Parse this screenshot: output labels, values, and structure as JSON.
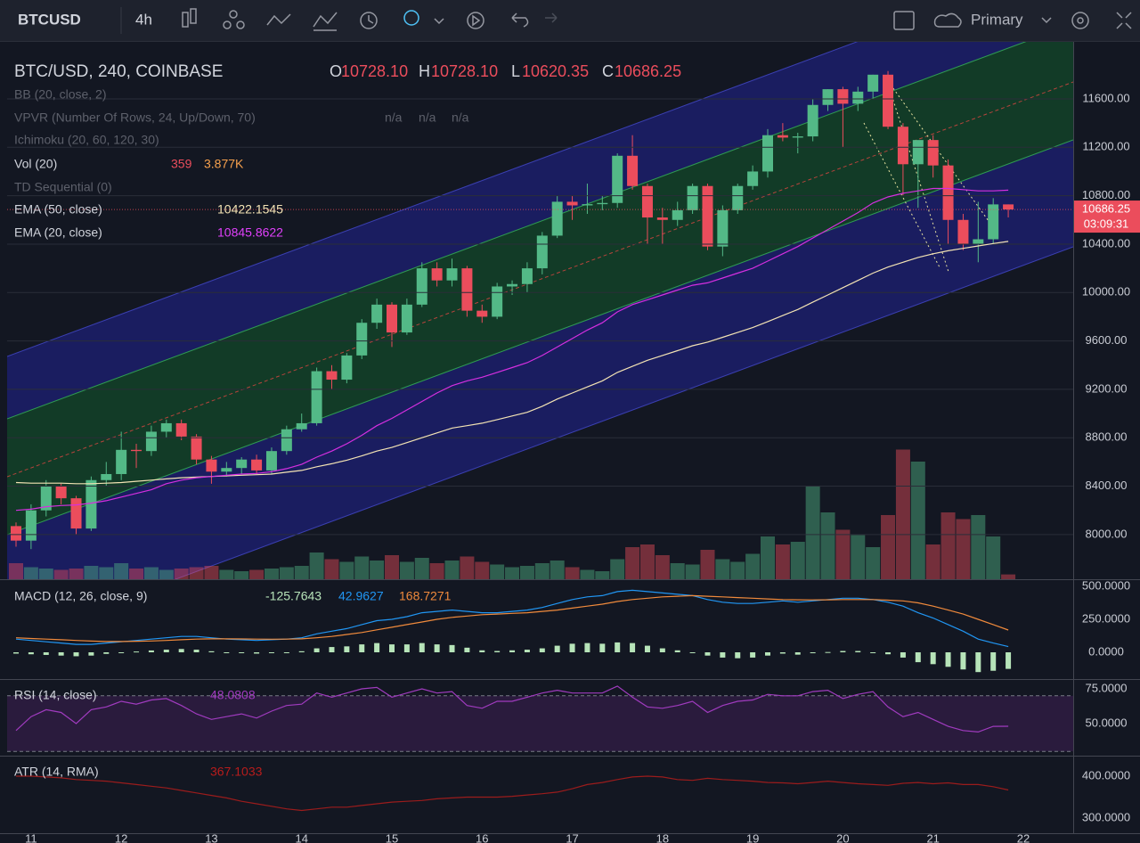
{
  "toolbar": {
    "symbol": "BTCUSD",
    "interval": "4h",
    "layout": "Primary"
  },
  "chart_data": {
    "type": "candlestick",
    "title": "BTC/USD, 240, COINBASE",
    "ohlc_legend": [
      {
        "prefix": "O",
        "label": "10728.10"
      },
      {
        "prefix": "H",
        "label": "10728.10"
      },
      {
        "prefix": "L",
        "label": "10620.35"
      },
      {
        "prefix": "C",
        "label": "10686.25"
      }
    ],
    "hidden_indicators": [
      {
        "name": "BB (20, close, 2)"
      },
      {
        "name": "VPVR (Number Of Rows, 24, Up/Down, 70)",
        "values": [
          "n/a",
          "n/a",
          "n/a"
        ]
      },
      {
        "name": "Ichimoku (20, 60, 120, 30)"
      },
      {
        "name": "TD Sequential (0)"
      }
    ],
    "up_color": "#53b987",
    "down_color": "#eb4d5c",
    "ylim": [
      7631,
      12071
    ],
    "yticks": [
      {
        "value": 8000,
        "label": "8000.00"
      },
      {
        "value": 8400,
        "label": "8400.00"
      },
      {
        "value": 8800,
        "label": "8800.00"
      },
      {
        "value": 9200,
        "label": "9200.00"
      },
      {
        "value": 9600,
        "label": "9600.00"
      },
      {
        "value": 10000,
        "label": "10000.00"
      },
      {
        "value": 10400,
        "label": "10400.00"
      },
      {
        "value": 10800,
        "label": "10800.00"
      },
      {
        "value": 11200,
        "label": "11200.00"
      },
      {
        "value": 11600,
        "label": "11600.00"
      }
    ],
    "grid": true,
    "x_labels": [
      "11",
      "12",
      "13",
      "14",
      "15",
      "16",
      "17",
      "18",
      "19",
      "20",
      "21",
      "22"
    ],
    "countdown": "03:09:31",
    "open": [
      8070,
      7950,
      8200,
      8400,
      8300,
      8050,
      8450,
      8500,
      8700,
      8690,
      8850,
      8920,
      8810,
      8620,
      8520,
      8550,
      8620,
      8530,
      8690,
      8870,
      8920,
      9350,
      9280,
      9480,
      9750,
      9900,
      9670,
      9900,
      10200,
      10100,
      10200,
      9850,
      9800,
      10050,
      10070,
      10200,
      10470,
      10750,
      10720,
      10730,
      10740,
      11130,
      10880,
      10620,
      10600,
      10680,
      10880,
      10380,
      10680,
      10880,
      11000,
      11300,
      11280,
      11290,
      11550,
      11680,
      11560,
      11660,
      11800,
      11370,
      11060,
      11260,
      11050,
      10600,
      10400,
      10440,
      10728.1
    ],
    "high": [
      8100,
      8250,
      8450,
      8420,
      8320,
      8480,
      8600,
      8850,
      8750,
      8900,
      8950,
      8950,
      8830,
      8650,
      8600,
      8640,
      8660,
      8720,
      8900,
      9000,
      9380,
      9400,
      9500,
      9780,
      9950,
      9920,
      9950,
      10250,
      10250,
      10280,
      10220,
      9900,
      10080,
      10100,
      10250,
      10500,
      10800,
      10800,
      10900,
      10800,
      11150,
      11300,
      10900,
      10700,
      10750,
      10900,
      10900,
      10720,
      10900,
      11050,
      11350,
      11400,
      11320,
      11600,
      11680,
      11700,
      11700,
      11800,
      11830,
      11400,
      11250,
      11300,
      11100,
      10650,
      10750,
      10780,
      10728.1
    ],
    "low": [
      7900,
      7880,
      8150,
      8250,
      8000,
      8030,
      8400,
      8450,
      8550,
      8650,
      8800,
      8780,
      8580,
      8420,
      8480,
      8500,
      8500,
      8500,
      8660,
      8850,
      8900,
      9200,
      9250,
      9450,
      9700,
      9550,
      9650,
      9880,
      10050,
      10050,
      9800,
      9750,
      9780,
      9980,
      10000,
      10150,
      10450,
      10600,
      10650,
      10680,
      10700,
      10850,
      10400,
      10400,
      10550,
      10650,
      10350,
      10300,
      10650,
      10850,
      10950,
      11250,
      11150,
      11250,
      11500,
      11200,
      11500,
      11600,
      11350,
      10800,
      10700,
      10950,
      10400,
      10350,
      10250,
      10400,
      10620.35
    ],
    "close": [
      7950,
      8200,
      8400,
      8300,
      8050,
      8450,
      8500,
      8700,
      8690,
      8850,
      8920,
      8810,
      8620,
      8520,
      8550,
      8620,
      8530,
      8690,
      8870,
      8920,
      9350,
      9280,
      9480,
      9750,
      9900,
      9670,
      9900,
      10200,
      10100,
      10200,
      9850,
      9800,
      10050,
      10070,
      10200,
      10470,
      10750,
      10720,
      10730,
      10740,
      11130,
      10880,
      10620,
      10600,
      10680,
      10880,
      10380,
      10680,
      10880,
      11000,
      11300,
      11280,
      11290,
      11550,
      11680,
      11560,
      11660,
      11800,
      11370,
      11060,
      11260,
      11050,
      10600,
      10400,
      10440,
      10728.1,
      10686.25
    ],
    "volume": {
      "name": "Vol (20)",
      "average_label": "3.877K",
      "values": [
        1200,
        900,
        800,
        700,
        800,
        1000,
        900,
        1200,
        800,
        900,
        700,
        800,
        900,
        1000,
        700,
        600,
        700,
        800,
        900,
        1000,
        2000,
        1500,
        1300,
        1700,
        1400,
        1800,
        1300,
        1600,
        1200,
        1400,
        1700,
        1300,
        1100,
        900,
        1000,
        1200,
        1400,
        900,
        700,
        600,
        1500,
        2400,
        2600,
        1800,
        1200,
        1100,
        2200,
        1500,
        1300,
        1900,
        3200,
        2600,
        2800,
        7000,
        5000,
        3700,
        3300,
        2400,
        4800,
        9700,
        8800,
        2600,
        5000,
        4500,
        4800,
        3200,
        359
      ]
    },
    "ema50": {
      "name": "EMA (50, close)",
      "color": "#f3e3b4",
      "values": [
        8430,
        8425,
        8425,
        8425,
        8420,
        8420,
        8425,
        8430,
        8440,
        8450,
        8460,
        8470,
        8475,
        8480,
        8485,
        8490,
        8495,
        8500,
        8515,
        8530,
        8560,
        8585,
        8615,
        8650,
        8690,
        8720,
        8760,
        8800,
        8840,
        8880,
        8900,
        8920,
        8950,
        8980,
        9010,
        9060,
        9120,
        9170,
        9220,
        9270,
        9340,
        9390,
        9440,
        9480,
        9520,
        9560,
        9590,
        9630,
        9670,
        9710,
        9760,
        9810,
        9860,
        9920,
        9980,
        10040,
        10100,
        10160,
        10210,
        10250,
        10290,
        10320,
        10345,
        10365,
        10385,
        10405,
        10422.1545
      ]
    },
    "ema20": {
      "name": "EMA (20, close)",
      "color": "#d52fe0",
      "values": [
        8200,
        8210,
        8230,
        8240,
        8245,
        8260,
        8280,
        8310,
        8340,
        8370,
        8420,
        8450,
        8470,
        8480,
        8490,
        8500,
        8505,
        8520,
        8545,
        8580,
        8640,
        8690,
        8750,
        8820,
        8900,
        8960,
        9030,
        9100,
        9170,
        9230,
        9270,
        9300,
        9340,
        9380,
        9420,
        9480,
        9550,
        9620,
        9690,
        9750,
        9840,
        9900,
        9940,
        9980,
        10020,
        10060,
        10080,
        10120,
        10160,
        10200,
        10260,
        10320,
        10380,
        10450,
        10520,
        10590,
        10660,
        10740,
        10790,
        10820,
        10840,
        10860,
        10860,
        10850,
        10840,
        10840,
        10845.8622
      ]
    },
    "macd": {
      "name": "MACD (12, 26, close, 9)",
      "ylim": [
        -202.7,
        540.5
      ],
      "yticks": [
        {
          "value": 500,
          "label": "500.0000"
        },
        {
          "value": 250,
          "label": "250.0000"
        },
        {
          "value": 0,
          "label": "0.0000"
        }
      ],
      "histogram": {
        "color": "#b7e4b9",
        "values": [
          -10,
          -15,
          -20,
          -25,
          -30,
          -25,
          -12,
          -2,
          6,
          14,
          20,
          25,
          20,
          8,
          -2,
          -6,
          -10,
          -4,
          0,
          8,
          30,
          40,
          45,
          60,
          70,
          60,
          60,
          70,
          60,
          55,
          35,
          15,
          10,
          15,
          20,
          30,
          50,
          65,
          70,
          65,
          75,
          70,
          50,
          30,
          15,
          0,
          -25,
          -40,
          -45,
          -40,
          -25,
          -10,
          -18,
          -7,
          2,
          10,
          10,
          0,
          -15,
          -40,
          -75,
          -90,
          -110,
          -130,
          -150,
          -140,
          -125.7643
        ]
      },
      "macd_line": {
        "color": "#2196f3",
        "values": [
          100,
          90,
          80,
          70,
          60,
          60,
          70,
          80,
          90,
          100,
          110,
          120,
          120,
          110,
          100,
          95,
          90,
          95,
          100,
          110,
          140,
          160,
          180,
          210,
          240,
          250,
          270,
          300,
          310,
          320,
          310,
          300,
          300,
          310,
          320,
          340,
          370,
          400,
          420,
          430,
          460,
          470,
          460,
          450,
          440,
          430,
          400,
          380,
          370,
          370,
          380,
          390,
          380,
          390,
          400,
          410,
          410,
          400,
          380,
          350,
          300,
          260,
          210,
          160,
          100,
          70,
          42.9627
        ]
      },
      "signal": {
        "color": "#f08a3c",
        "values": [
          110,
          105,
          100,
          95,
          90,
          85,
          82,
          82,
          84,
          86,
          90,
          95,
          100,
          102,
          102,
          101,
          100,
          99,
          100,
          102,
          110,
          120,
          135,
          150,
          170,
          190,
          210,
          230,
          250,
          265,
          275,
          285,
          290,
          295,
          300,
          310,
          320,
          335,
          350,
          365,
          385,
          400,
          410,
          420,
          425,
          430,
          425,
          420,
          415,
          410,
          405,
          400,
          398,
          397,
          398,
          400,
          400,
          400,
          395,
          390,
          375,
          350,
          320,
          290,
          250,
          210,
          168.7271
        ]
      }
    },
    "rsi": {
      "name": "RSI (14, close)",
      "color": "#a03bbf",
      "ylim": [
        26.92,
        80.77
      ],
      "bands": [
        30,
        70
      ],
      "yticks": [
        {
          "value": 75,
          "label": "75.0000"
        },
        {
          "value": 50,
          "label": "50.0000"
        }
      ],
      "values": [
        45,
        55,
        60,
        58,
        50,
        60,
        62,
        66,
        64,
        67,
        68,
        63,
        57,
        53,
        55,
        57,
        54,
        59,
        63,
        64,
        72,
        69,
        72,
        75,
        76,
        69,
        72,
        75,
        72,
        73,
        63,
        61,
        66,
        66,
        69,
        72,
        74,
        72,
        72,
        72,
        77,
        69,
        62,
        61,
        63,
        66,
        58,
        63,
        66,
        67,
        71,
        70,
        70,
        73,
        74,
        68,
        71,
        73,
        62,
        55,
        58,
        53,
        48,
        45,
        44,
        48,
        48.0808
      ]
    },
    "atr": {
      "name": "ATR (14, RMA)",
      "color": "#9b1c1c",
      "ylim": [
        263.8,
        444.7
      ],
      "yticks": [
        {
          "value": 400,
          "label": "400.0000"
        },
        {
          "value": 300,
          "label": "300.0000"
        }
      ],
      "values": [
        400,
        400,
        398,
        396,
        392,
        390,
        388,
        384,
        380,
        376,
        372,
        366,
        360,
        354,
        348,
        340,
        334,
        328,
        322,
        318,
        322,
        326,
        326,
        330,
        334,
        338,
        340,
        342,
        346,
        348,
        350,
        350,
        350,
        352,
        355,
        358,
        362,
        370,
        380,
        385,
        392,
        398,
        400,
        398,
        392,
        390,
        395,
        392,
        390,
        388,
        385,
        384,
        382,
        385,
        388,
        385,
        382,
        380,
        378,
        383,
        385,
        382,
        384,
        380,
        380,
        375,
        367.1033
      ]
    }
  }
}
